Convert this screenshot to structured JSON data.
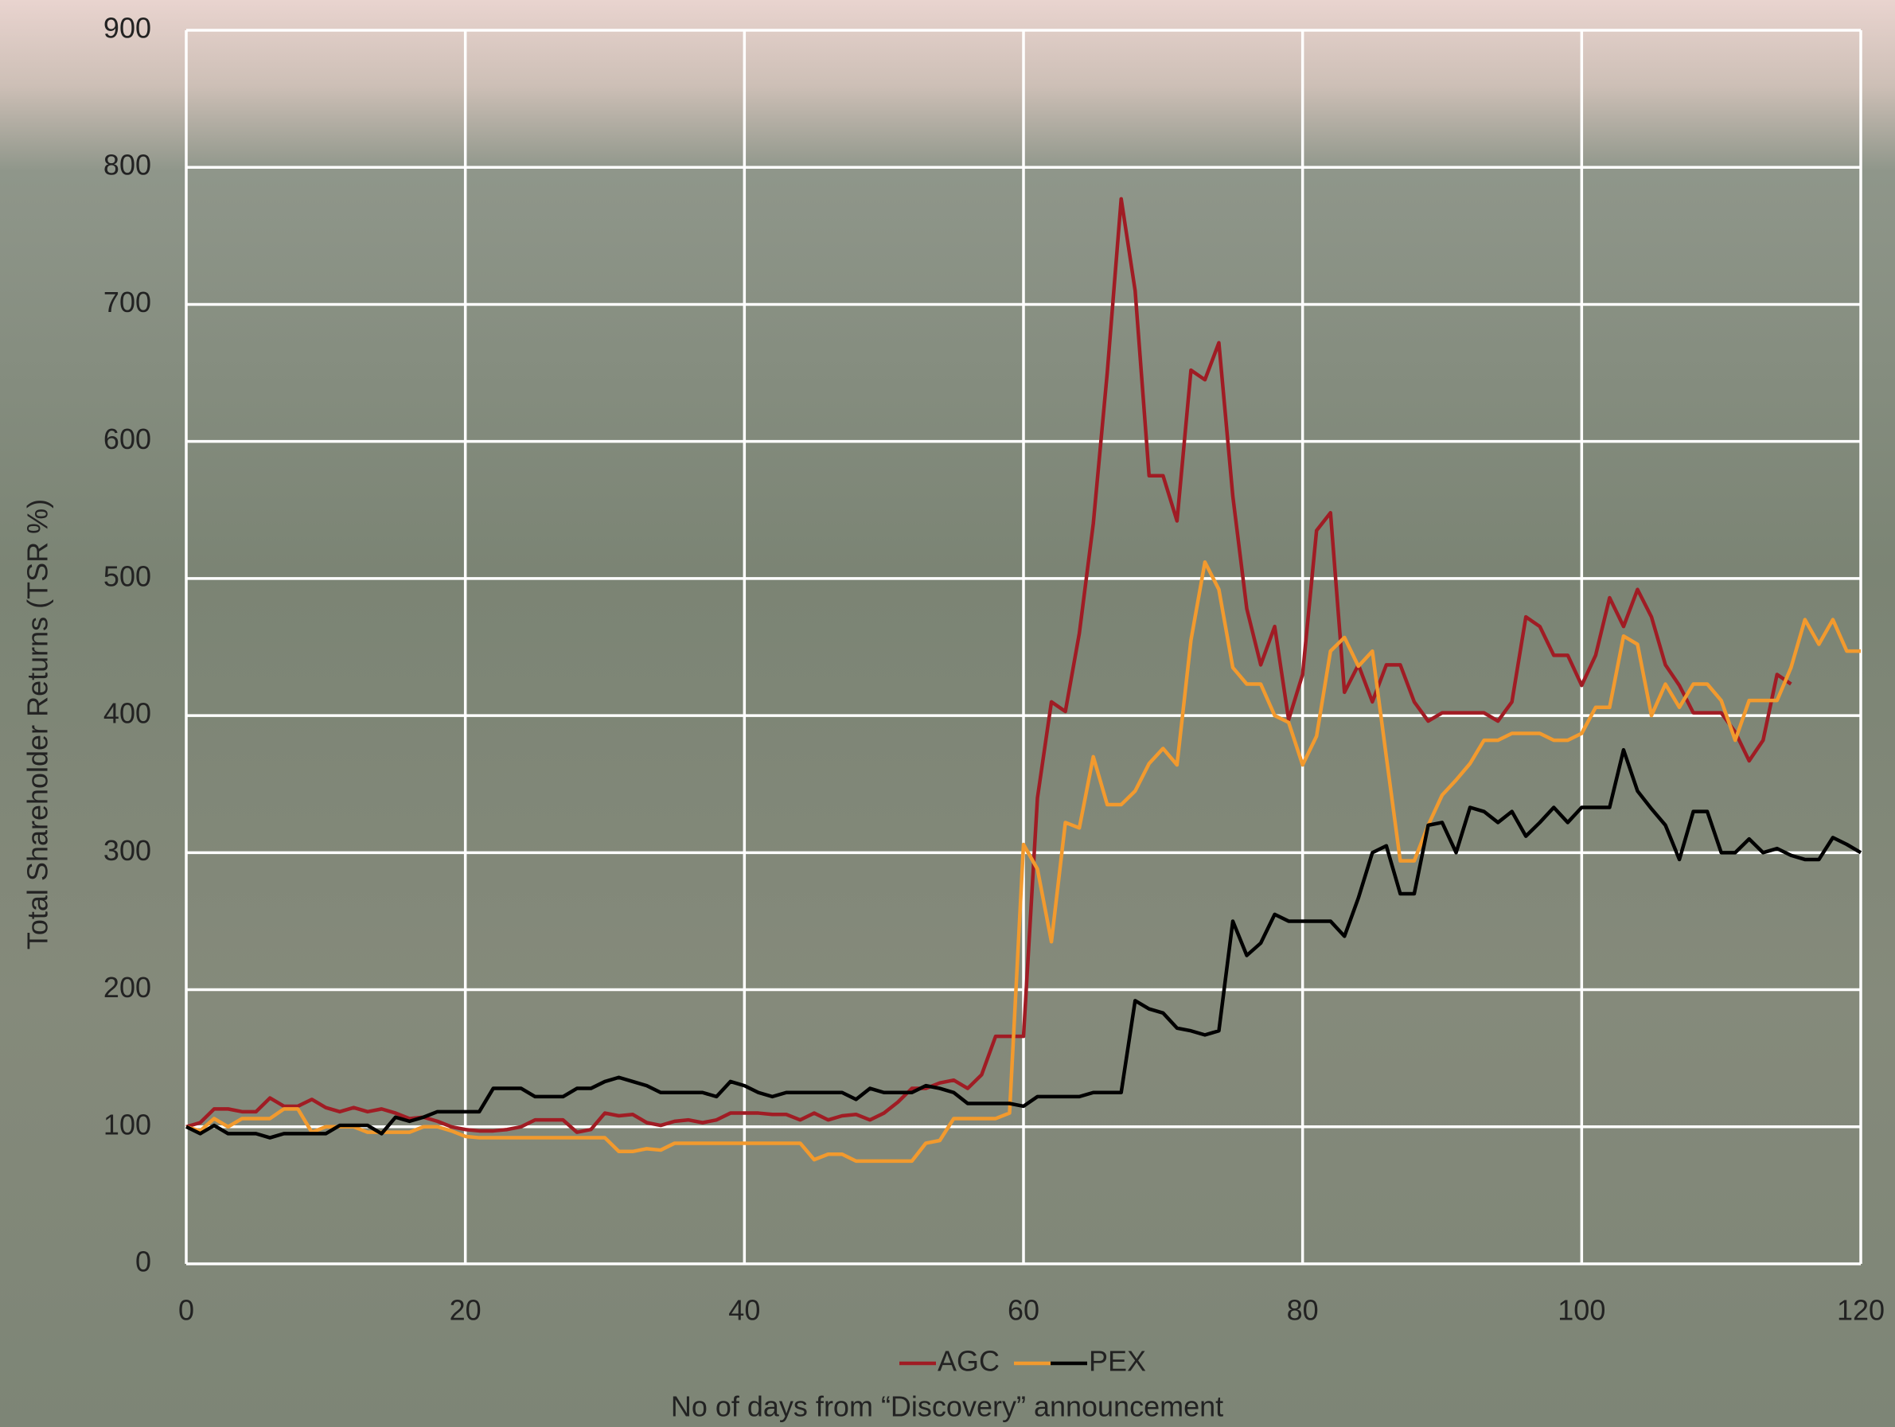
{
  "chart_data": {
    "type": "line",
    "xlabel": "No of days from “Discovery” announcement",
    "ylabel": "Total Shareholder Returns (TSR %)",
    "x": [
      0,
      1,
      2,
      3,
      4,
      5,
      6,
      7,
      8,
      9,
      10,
      11,
      12,
      13,
      14,
      15,
      16,
      17,
      18,
      19,
      20,
      21,
      22,
      23,
      24,
      25,
      26,
      27,
      28,
      29,
      30,
      31,
      32,
      33,
      34,
      35,
      36,
      37,
      38,
      39,
      40,
      41,
      42,
      43,
      44,
      45,
      46,
      47,
      48,
      49,
      50,
      51,
      52,
      53,
      54,
      55,
      56,
      57,
      58,
      59,
      60,
      61,
      62,
      63,
      64,
      65,
      66,
      67,
      68,
      69,
      70,
      71,
      72,
      73,
      74,
      75,
      76,
      77,
      78,
      79,
      80,
      81,
      82,
      83,
      84,
      85,
      86,
      87,
      88,
      89,
      90,
      91,
      92,
      93,
      94,
      95,
      96,
      97,
      98,
      99,
      100,
      101,
      102,
      103,
      104,
      105,
      106,
      107,
      108,
      109,
      110,
      111,
      112,
      113,
      114,
      115,
      116,
      117,
      118,
      119,
      120
    ],
    "series": [
      {
        "name": "AGC",
        "color": "#a01c24",
        "values": [
          100,
          103,
          113,
          113,
          111,
          111,
          121,
          115,
          115,
          120,
          114,
          111,
          114,
          111,
          113,
          110,
          106,
          107,
          104,
          100,
          98,
          97,
          97,
          98,
          100,
          105,
          105,
          105,
          96,
          98,
          110,
          108,
          109,
          103,
          101,
          104,
          105,
          103,
          105,
          110,
          110,
          110,
          109,
          109,
          105,
          110,
          105,
          108,
          109,
          105,
          110,
          118,
          128,
          128,
          132,
          134,
          128,
          138,
          166,
          166,
          166,
          340,
          410,
          403,
          460,
          540,
          650,
          777,
          710,
          575,
          575,
          542,
          652,
          645,
          672,
          560,
          478,
          437,
          465,
          397,
          430,
          535,
          548,
          417,
          437,
          410,
          437,
          437,
          410,
          396,
          402,
          402,
          402,
          402,
          396,
          410,
          472,
          465,
          444,
          444,
          422,
          444,
          486,
          465,
          492,
          472,
          437,
          422,
          402,
          402,
          402,
          388,
          367,
          382,
          430,
          423,
          null,
          null,
          null,
          null,
          null
        ]
      },
      {
        "color": "#f29a2e",
        "values": [
          100,
          97,
          106,
          100,
          106,
          106,
          106,
          113,
          113,
          96,
          100,
          100,
          100,
          96,
          96,
          96,
          96,
          100,
          100,
          97,
          93,
          92,
          92,
          92,
          92,
          92,
          92,
          92,
          92,
          92,
          92,
          82,
          82,
          84,
          83,
          88,
          88,
          88,
          88,
          88,
          88,
          88,
          88,
          88,
          88,
          76,
          80,
          80,
          75,
          75,
          75,
          75,
          75,
          88,
          90,
          106,
          106,
          106,
          106,
          110,
          306,
          288,
          235,
          322,
          318,
          370,
          335,
          335,
          345,
          365,
          376,
          364,
          455,
          512,
          492,
          435,
          423,
          423,
          400,
          395,
          364,
          385,
          447,
          457,
          436,
          447,
          370,
          294,
          294,
          320,
          342,
          353,
          365,
          382,
          382,
          387,
          387,
          387,
          382,
          382,
          387,
          406,
          406,
          458,
          452,
          400,
          423,
          406,
          423,
          423,
          411,
          382,
          411,
          411,
          411,
          435,
          470,
          452,
          470,
          447,
          447
        ]
      },
      {
        "name": "PEX",
        "color": "#000000",
        "values": [
          100,
          95,
          101,
          95,
          95,
          95,
          92,
          95,
          95,
          95,
          95,
          101,
          101,
          101,
          95,
          107,
          104,
          107,
          111,
          111,
          111,
          111,
          128,
          128,
          128,
          122,
          122,
          122,
          128,
          128,
          133,
          136,
          133,
          130,
          125,
          125,
          125,
          125,
          122,
          133,
          130,
          125,
          122,
          125,
          125,
          125,
          125,
          125,
          120,
          128,
          125,
          125,
          125,
          130,
          128,
          125,
          117,
          117,
          117,
          117,
          115,
          122,
          122,
          122,
          122,
          125,
          125,
          125,
          192,
          186,
          183,
          172,
          170,
          167,
          170,
          250,
          225,
          234,
          255,
          250,
          250,
          250,
          250,
          239,
          267,
          300,
          305,
          270,
          270,
          320,
          322,
          300,
          333,
          330,
          322,
          330,
          312,
          322,
          333,
          322,
          333,
          333,
          333,
          375,
          345,
          332,
          320,
          295,
          330,
          330,
          300,
          300,
          310,
          300,
          303,
          298,
          295,
          295,
          311,
          306,
          300
        ]
      }
    ],
    "xlim": [
      0,
      120
    ],
    "xticks": [
      0,
      20,
      40,
      60,
      80,
      100,
      120
    ],
    "ylim": [
      0,
      900
    ],
    "yticks": [
      0,
      100,
      200,
      300,
      400,
      500,
      600,
      700,
      800,
      900
    ],
    "grid": true,
    "legend": "bottom"
  }
}
